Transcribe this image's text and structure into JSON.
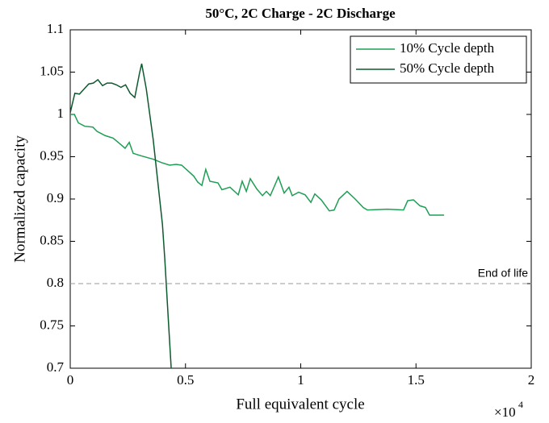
{
  "chart_data": {
    "type": "line",
    "title": "50°C, 2C Charge - 2C Discharge",
    "x_label": "Full equivalent cycle",
    "y_label": "Normalized capacity",
    "x_multiplier": {
      "base": "×10",
      "exponent": "4"
    },
    "xlim": [
      0,
      2
    ],
    "xticks": [
      0,
      0.5,
      1,
      1.5,
      2
    ],
    "ylim": [
      0.7,
      1.1
    ],
    "yticks": [
      0.7,
      0.75,
      0.8,
      0.85,
      0.9,
      0.95,
      1,
      1.05,
      1.1
    ],
    "legend_position": "top-right",
    "reference_line": {
      "value": 0.8,
      "label": "End of life",
      "color": "#999999"
    },
    "series": [
      {
        "name": "10% Cycle depth",
        "color": "#1f9e55",
        "x": [
          0,
          0.018,
          0.035,
          0.063,
          0.098,
          0.116,
          0.151,
          0.186,
          0.221,
          0.238,
          0.256,
          0.273,
          0.308,
          0.361,
          0.396,
          0.431,
          0.459,
          0.483,
          0.508,
          0.536,
          0.553,
          0.571,
          0.588,
          0.606,
          0.641,
          0.658,
          0.693,
          0.729,
          0.746,
          0.764,
          0.781,
          0.809,
          0.834,
          0.851,
          0.868,
          0.903,
          0.928,
          0.949,
          0.963,
          0.991,
          1.019,
          1.044,
          1.061,
          1.089,
          1.124,
          1.145,
          1.166,
          1.201,
          1.236,
          1.271,
          1.289,
          1.376,
          1.446,
          1.464,
          1.489,
          1.517,
          1.541,
          1.559,
          1.587,
          1.622
        ],
        "values": [
          1.0,
          1.0,
          0.99,
          0.986,
          0.985,
          0.98,
          0.975,
          0.972,
          0.964,
          0.96,
          0.967,
          0.954,
          0.951,
          0.947,
          0.943,
          0.94,
          0.941,
          0.94,
          0.934,
          0.927,
          0.92,
          0.916,
          0.935,
          0.921,
          0.919,
          0.911,
          0.914,
          0.905,
          0.921,
          0.909,
          0.924,
          0.912,
          0.904,
          0.909,
          0.904,
          0.926,
          0.907,
          0.914,
          0.904,
          0.908,
          0.905,
          0.896,
          0.906,
          0.899,
          0.886,
          0.887,
          0.9,
          0.909,
          0.9,
          0.89,
          0.887,
          0.888,
          0.887,
          0.898,
          0.899,
          0.892,
          0.89,
          0.881,
          0.881,
          0.881
        ]
      },
      {
        "name": "50% Cycle depth",
        "color": "#0d5a2e",
        "x": [
          0,
          0.02,
          0.04,
          0.06,
          0.08,
          0.1,
          0.12,
          0.14,
          0.16,
          0.18,
          0.2,
          0.22,
          0.24,
          0.26,
          0.28,
          0.3,
          0.31,
          0.33,
          0.36,
          0.38,
          0.4,
          0.41,
          0.425,
          0.438
        ],
        "values": [
          1.002,
          1.025,
          1.024,
          1.03,
          1.036,
          1.037,
          1.041,
          1.034,
          1.037,
          1.037,
          1.035,
          1.032,
          1.035,
          1.025,
          1.02,
          1.048,
          1.06,
          1.03,
          0.97,
          0.92,
          0.87,
          0.83,
          0.76,
          0.7
        ]
      }
    ]
  }
}
